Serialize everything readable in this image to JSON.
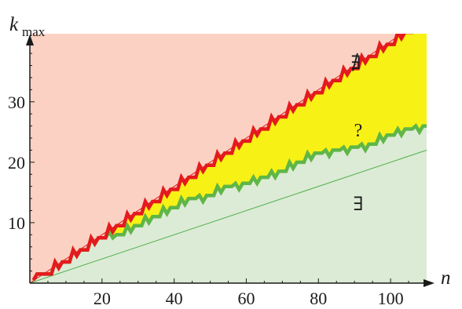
{
  "chart_data": {
    "type": "area",
    "title": "",
    "xlabel": "n",
    "ylabel": "k",
    "ylabel_subscript": "max",
    "xlim": [
      0,
      110
    ],
    "ylim": [
      0,
      41
    ],
    "xticks": [
      20,
      40,
      60,
      80,
      100
    ],
    "yticks": [
      10,
      20,
      30
    ],
    "grid": false,
    "region_labels": [
      {
        "text": "∄",
        "x": 90,
        "y": 35.5
      },
      {
        "text": "?",
        "x": 91.5,
        "y": 25
      },
      {
        "text": "∃",
        "x": 91.5,
        "y": 13.5
      }
    ],
    "series": [
      {
        "name": "upper_bound",
        "color": "#e41a1c",
        "points": [
          [
            1,
            0.5
          ],
          [
            2,
            1.5
          ],
          [
            6,
            1.5
          ],
          [
            7,
            3.5
          ],
          [
            8,
            2.5
          ],
          [
            9,
            3.5
          ],
          [
            11,
            3.5
          ],
          [
            12,
            5.5
          ],
          [
            13,
            4.5
          ],
          [
            14,
            5.5
          ],
          [
            16,
            5.5
          ],
          [
            17,
            7.5
          ],
          [
            18,
            6.5
          ],
          [
            19,
            7.5
          ],
          [
            21,
            7.5
          ],
          [
            22,
            9.5
          ],
          [
            23,
            8.5
          ],
          [
            24,
            9.5
          ],
          [
            26,
            9.5
          ],
          [
            27,
            11.5
          ],
          [
            28,
            10.5
          ],
          [
            29,
            11.5
          ],
          [
            31,
            11.5
          ],
          [
            32,
            13.5
          ],
          [
            33,
            12.5
          ],
          [
            34,
            13.5
          ],
          [
            36,
            13.5
          ],
          [
            37,
            15.5
          ],
          [
            38,
            14.5
          ],
          [
            39,
            15.5
          ],
          [
            41,
            15.5
          ],
          [
            42,
            17.5
          ],
          [
            43,
            16.5
          ],
          [
            44,
            17.5
          ],
          [
            46,
            17.5
          ],
          [
            47,
            19.5
          ],
          [
            48,
            18.5
          ],
          [
            49,
            19.5
          ],
          [
            51,
            19.5
          ],
          [
            52,
            21.5
          ],
          [
            53,
            20.5
          ],
          [
            54,
            21.5
          ],
          [
            56,
            21.5
          ],
          [
            57,
            23.5
          ],
          [
            58,
            22.5
          ],
          [
            59,
            23.5
          ],
          [
            61,
            23.5
          ],
          [
            62,
            25.5
          ],
          [
            63,
            24.5
          ],
          [
            64,
            25.5
          ],
          [
            66,
            25.5
          ],
          [
            67,
            27.5
          ],
          [
            68,
            26.5
          ],
          [
            69,
            27.5
          ],
          [
            71,
            27.5
          ],
          [
            72,
            29.5
          ],
          [
            73,
            28.5
          ],
          [
            74,
            29.5
          ],
          [
            76,
            29.5
          ],
          [
            77,
            31.5
          ],
          [
            78,
            30.5
          ],
          [
            79,
            31.5
          ],
          [
            81,
            31.5
          ],
          [
            82,
            33.5
          ],
          [
            83,
            32.5
          ],
          [
            84,
            33.5
          ],
          [
            86,
            33.5
          ],
          [
            87,
            35.5
          ],
          [
            88,
            34.5
          ],
          [
            89,
            35.5
          ],
          [
            91,
            35.5
          ],
          [
            92,
            37.5
          ],
          [
            93,
            36.5
          ],
          [
            94,
            37.5
          ],
          [
            96,
            37.5
          ],
          [
            97,
            39.5
          ],
          [
            98,
            38.5
          ],
          [
            99,
            39.5
          ],
          [
            101,
            39.5
          ],
          [
            102,
            41.5
          ],
          [
            103,
            40.5
          ],
          [
            104,
            41.5
          ],
          [
            106,
            41.5
          ],
          [
            107,
            43.5
          ],
          [
            108,
            42.5
          ],
          [
            109,
            43.5
          ],
          [
            110,
            43.5
          ]
        ]
      },
      {
        "name": "lower_bound",
        "color": "#4daf4a",
        "points": [
          [
            1,
            0.5
          ],
          [
            2,
            1.5
          ],
          [
            6,
            1.5
          ],
          [
            7,
            3.5
          ],
          [
            8,
            2.5
          ],
          [
            9,
            3.5
          ],
          [
            11,
            3.5
          ],
          [
            12,
            5.5
          ],
          [
            13,
            4.5
          ],
          [
            14,
            5.5
          ],
          [
            16,
            5.5
          ],
          [
            17,
            7.5
          ],
          [
            18,
            6.5
          ],
          [
            19,
            7.5
          ],
          [
            21,
            7.5
          ],
          [
            22,
            8.5
          ],
          [
            23,
            7.5
          ],
          [
            24,
            8
          ],
          [
            26,
            8
          ],
          [
            27,
            9.5
          ],
          [
            28,
            8.5
          ],
          [
            29,
            9.5
          ],
          [
            31,
            9.5
          ],
          [
            32,
            11
          ],
          [
            33,
            10
          ],
          [
            34,
            11
          ],
          [
            36,
            11
          ],
          [
            37,
            12.5
          ],
          [
            38,
            11.5
          ],
          [
            39,
            12.5
          ],
          [
            41,
            12.5
          ],
          [
            42,
            14
          ],
          [
            43,
            13
          ],
          [
            44,
            14
          ],
          [
            46,
            14
          ],
          [
            47,
            14.5
          ],
          [
            48,
            13.5
          ],
          [
            49,
            14.5
          ],
          [
            51,
            14.5
          ],
          [
            52,
            16
          ],
          [
            53,
            15
          ],
          [
            54,
            16
          ],
          [
            56,
            16
          ],
          [
            57,
            16.5
          ],
          [
            58,
            15.5
          ],
          [
            59,
            16.5
          ],
          [
            61,
            16.5
          ],
          [
            62,
            17.5
          ],
          [
            63,
            16.5
          ],
          [
            64,
            17.5
          ],
          [
            66,
            17.5
          ],
          [
            67,
            18.5
          ],
          [
            68,
            17.5
          ],
          [
            69,
            18.5
          ],
          [
            71,
            18.5
          ],
          [
            72,
            20
          ],
          [
            73,
            19
          ],
          [
            74,
            20
          ],
          [
            76,
            20
          ],
          [
            77,
            21.5
          ],
          [
            78,
            20.5
          ],
          [
            79,
            21.5
          ],
          [
            81,
            21.5
          ],
          [
            82,
            22
          ],
          [
            83,
            21
          ],
          [
            84,
            22
          ],
          [
            86,
            22
          ],
          [
            87,
            22.5
          ],
          [
            88,
            21.5
          ],
          [
            89,
            22.5
          ],
          [
            91,
            22.5
          ],
          [
            92,
            23
          ],
          [
            93,
            22
          ],
          [
            94,
            23
          ],
          [
            96,
            23
          ],
          [
            97,
            24.5
          ],
          [
            98,
            23.5
          ],
          [
            99,
            24.5
          ],
          [
            101,
            24.5
          ],
          [
            102,
            25.5
          ],
          [
            103,
            24.5
          ],
          [
            104,
            25.5
          ],
          [
            106,
            25.5
          ],
          [
            107,
            26
          ],
          [
            108,
            25
          ],
          [
            109,
            26
          ],
          [
            110,
            26
          ]
        ]
      },
      {
        "name": "upper_line",
        "color": "#e41a1c",
        "points": [
          [
            0,
            0
          ],
          [
            110,
            44
          ]
        ]
      },
      {
        "name": "lower_line",
        "color": "#4daf4a",
        "points": [
          [
            0,
            0
          ],
          [
            110,
            22
          ]
        ]
      }
    ]
  },
  "colors": {
    "region_top": "#fad1c3",
    "region_middle": "#f7f116",
    "region_bottom": "#dcebd5",
    "upper": "#e41a1c",
    "lower": "#5fb646",
    "axis": "#1a1a1a"
  }
}
